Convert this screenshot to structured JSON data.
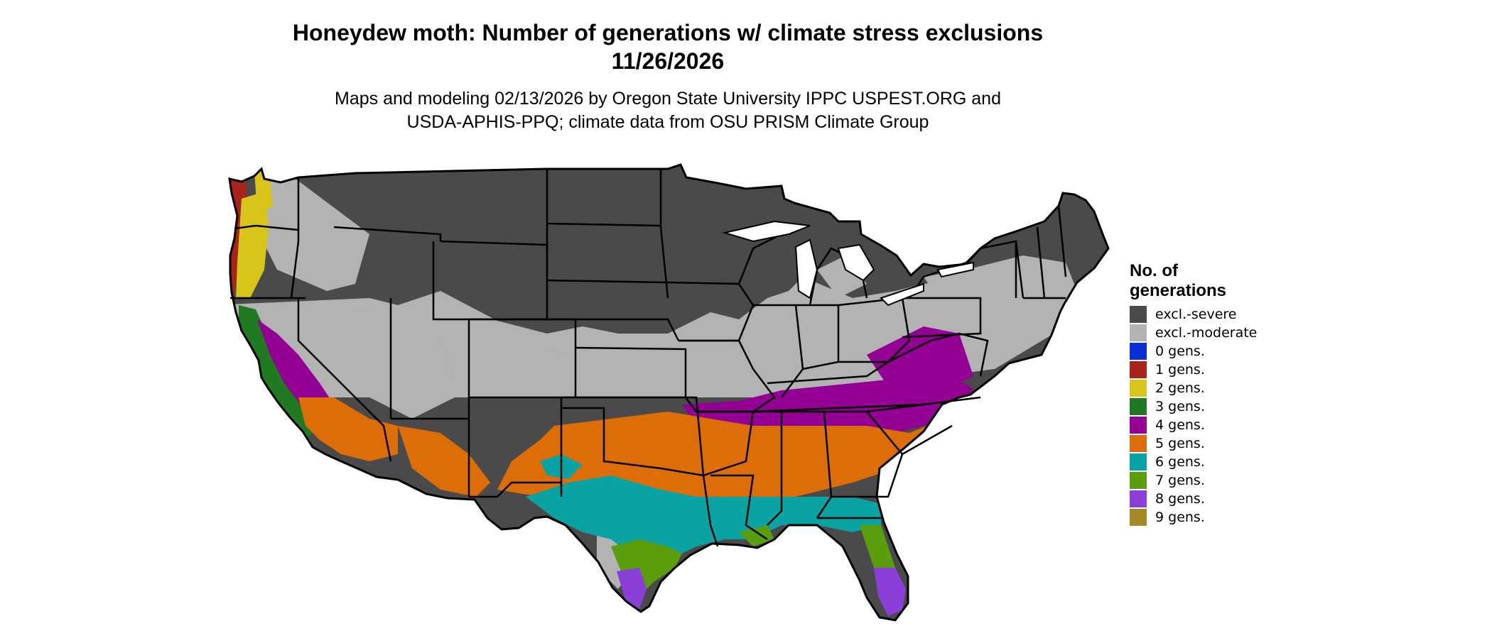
{
  "title": {
    "line1": "Honeydew moth: Number of generations w/ climate stress exclusions",
    "line2": "11/26/2026"
  },
  "subtitle": {
    "line1": "Maps and modeling 02/13/2026 by Oregon State University IPPC USPEST.ORG and",
    "line2": "USDA-APHIS-PPQ; climate data from OSU PRISM Climate Group"
  },
  "legend": {
    "title": "No. of\ngenerations",
    "items": [
      {
        "label": "excl.-severe",
        "color": "#4a4a4a"
      },
      {
        "label": "excl.-moderate",
        "color": "#b3b3b3"
      },
      {
        "label": "0 gens.",
        "color": "#0a2fd6"
      },
      {
        "label": "1 gens.",
        "color": "#a8231c"
      },
      {
        "label": "2 gens.",
        "color": "#d9c41a"
      },
      {
        "label": "3 gens.",
        "color": "#1f7a22"
      },
      {
        "label": "4 gens.",
        "color": "#930093"
      },
      {
        "label": "5 gens.",
        "color": "#dd6d06"
      },
      {
        "label": "6 gens.",
        "color": "#0aa3a3"
      },
      {
        "label": "7 gens.",
        "color": "#5a9e0d"
      },
      {
        "label": "8 gens.",
        "color": "#8a3fd9"
      },
      {
        "label": "9 gens.",
        "color": "#a48a22"
      }
    ]
  },
  "map": {
    "region": "Contiguous United States",
    "state_borders": true,
    "color_regions": [
      {
        "label": "excl.-severe",
        "color": "#4a4a4a"
      },
      {
        "label": "excl.-moderate",
        "color": "#b3b3b3"
      },
      {
        "label": "1 gens.",
        "color": "#a8231c"
      },
      {
        "label": "2 gens.",
        "color": "#d9c41a"
      },
      {
        "label": "3 gens.",
        "color": "#1f7a22"
      },
      {
        "label": "4 gens.",
        "color": "#930093"
      },
      {
        "label": "5 gens.",
        "color": "#dd6d06"
      },
      {
        "label": "6 gens.",
        "color": "#0aa3a3"
      },
      {
        "label": "7 gens.",
        "color": "#5a9e0d"
      },
      {
        "label": "8 gens.",
        "color": "#8a3fd9"
      }
    ]
  }
}
